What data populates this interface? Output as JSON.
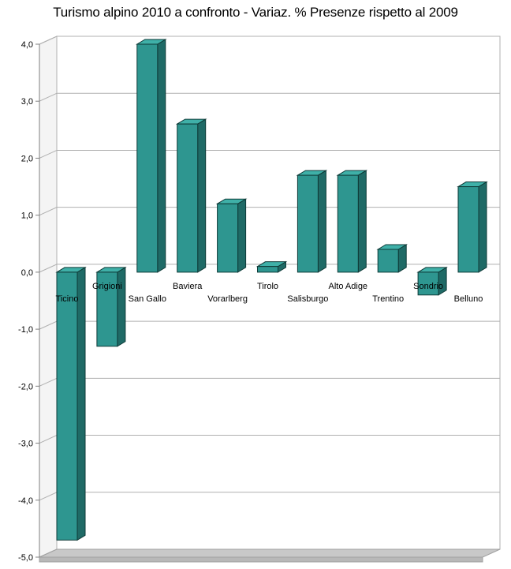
{
  "chart_data": {
    "type": "bar",
    "title": "Turismo alpino 2010 a confronto - Variaz. % Presenze rispetto al 2009",
    "xlabel": "",
    "ylabel": "",
    "categories": [
      "Ticino",
      "Grigioni",
      "San Gallo",
      "Baviera",
      "Vorarlberg",
      "Tirolo",
      "Salisburgo",
      "Alto Adige",
      "Trentino",
      "Sondrio",
      "Belluno"
    ],
    "values": [
      -4.7,
      -1.3,
      4.0,
      2.6,
      1.2,
      0.1,
      1.7,
      1.7,
      0.4,
      -0.4,
      1.5
    ],
    "ylim": [
      -5.0,
      4.0
    ],
    "yticks": [
      "4,0",
      "3,0",
      "2,0",
      "1,0",
      "0,0",
      "-1,0",
      "-2,0",
      "-3,0",
      "-4,0",
      "-5,0"
    ],
    "grid": true,
    "legend": "none",
    "style": "3d-column",
    "colors": {
      "bar_front": "#2e9690",
      "bar_top": "#3fb0a8",
      "bar_side": "#1f6a66",
      "grid": "#b0b0b0",
      "floor": "#c8c8c8",
      "wall": "#ffffff"
    }
  }
}
